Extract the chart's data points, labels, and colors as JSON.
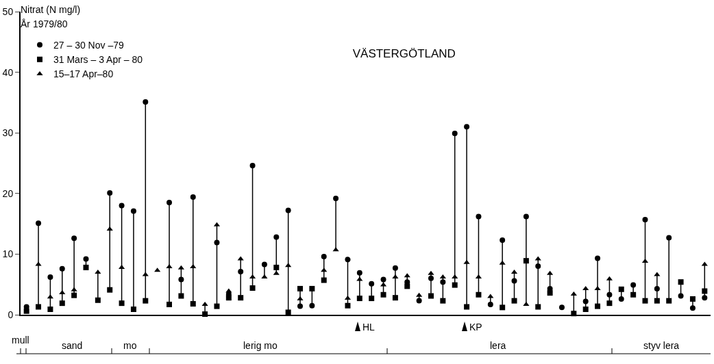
{
  "chart_data": {
    "type": "scatter",
    "title": "VÄSTERGÖTLAND",
    "ylabel": "Nitrat (N mg/l)",
    "subtitle": "År 1979/80",
    "categories": [
      null,
      null,
      null,
      null,
      null,
      null,
      null,
      null,
      null,
      null,
      null,
      null,
      null,
      null,
      null,
      null,
      null,
      null,
      null,
      null,
      null,
      null,
      null,
      null,
      null,
      null,
      null,
      null,
      null,
      null,
      null,
      null,
      null,
      null,
      null,
      null,
      null,
      null,
      null,
      null,
      null,
      null,
      null,
      null,
      null,
      null,
      null,
      null,
      null,
      null,
      null,
      null,
      null,
      null,
      null,
      null,
      null,
      null
    ],
    "series": [
      {
        "name": "27 – 30 Nov –79",
        "color": "#000000",
        "marker": "circle",
        "values": [
          1.3,
          15.1,
          6.2,
          7.6,
          12.6,
          9.2,
          null,
          20.1,
          18.0,
          17.1,
          35.1,
          null,
          18.5,
          5.8,
          19.4,
          null,
          11.9,
          3.4,
          7.1,
          24.6,
          8.3,
          12.8,
          17.2,
          1.4,
          1.5,
          9.6,
          19.2,
          9.1,
          6.9,
          5.1,
          5.8,
          7.7,
          5.4,
          2.3,
          6.0,
          5.4,
          29.9,
          31.0,
          16.2,
          1.7,
          12.3,
          5.6,
          16.2,
          8.0,
          4.3,
          1.2,
          null,
          2.2,
          9.3,
          3.3,
          2.6,
          4.9,
          15.7,
          4.3,
          12.7,
          3.1,
          1.1,
          2.8
        ]
      },
      {
        "name": "31 Mars – 3 Apr – 80",
        "color": "#000000",
        "marker": "square",
        "values": [
          0.6,
          1.3,
          0.9,
          1.9,
          3.2,
          7.8,
          2.4,
          4.1,
          1.9,
          0.9,
          2.3,
          null,
          1.7,
          3.1,
          1.8,
          0.1,
          1.4,
          2.8,
          2.8,
          4.4,
          null,
          7.8,
          0.4,
          4.3,
          4.3,
          5.7,
          null,
          1.5,
          2.7,
          2.7,
          3.3,
          2.8,
          4.7,
          null,
          3.1,
          2.3,
          4.9,
          1.3,
          3.3,
          null,
          1.2,
          2.3,
          8.9,
          1.3,
          3.6,
          null,
          0.2,
          0.9,
          1.4,
          1.9,
          4.2,
          3.3,
          2.3,
          2.3,
          2.3,
          5.4,
          2.6,
          3.9
        ]
      },
      {
        "name": "15–17 Apr–80",
        "color": "#000000",
        "marker": "triangle",
        "values": [
          null,
          8.3,
          2.9,
          3.6,
          4.1,
          null,
          7.0,
          14.1,
          7.8,
          null,
          6.6,
          7.3,
          7.9,
          7.7,
          7.9,
          1.7,
          14.8,
          3.9,
          9.2,
          6.2,
          6.2,
          6.8,
          8.1,
          2.6,
          null,
          7.3,
          10.7,
          2.7,
          5.8,
          null,
          4.9,
          6.2,
          6.4,
          3.2,
          6.8,
          6.2,
          6.2,
          8.6,
          6.2,
          3.0,
          8.5,
          7.0,
          1.7,
          9.2,
          6.8,
          null,
          3.4,
          4.3,
          4.3,
          5.9,
          null,
          null,
          8.8,
          6.6,
          null,
          null,
          null,
          8.3
        ]
      }
    ],
    "ylim": [
      0,
      50
    ],
    "yticks": [
      0,
      10,
      20,
      30,
      40,
      50
    ],
    "grid": false,
    "legend": "top left",
    "annotations": [
      "HL",
      "KP",
      "mull",
      "sand",
      "mo",
      "lerig mo",
      "lera",
      "styv lera"
    ]
  }
}
